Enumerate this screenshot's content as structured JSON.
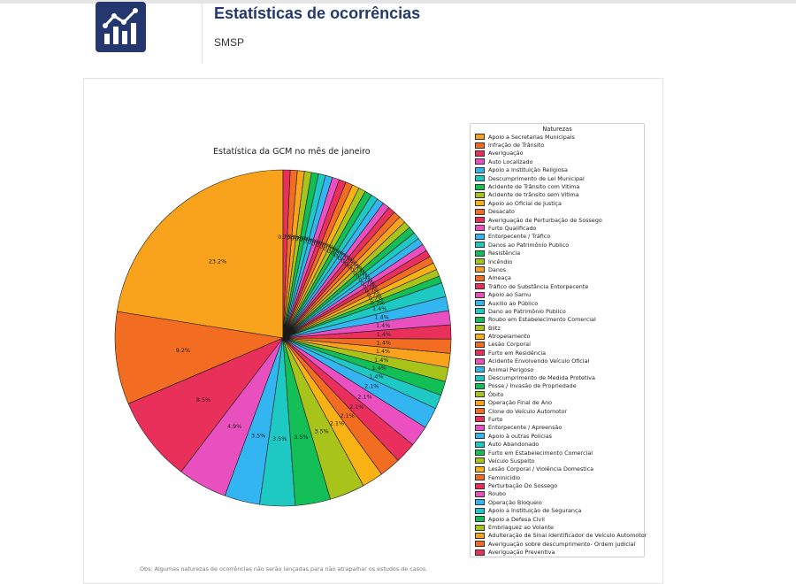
{
  "header": {
    "title": "Estatísticas de ocorrências",
    "subtitle": "SMSP"
  },
  "footer": {
    "note": "Obs: Algumas naturezas de ocorrências não serão lançadas para não atrapalhar os estudos de casos."
  },
  "chart_data": {
    "type": "pie",
    "title": "Estatística da GCM no mês de janeiro",
    "legend_title": "Naturezas",
    "legend_position": "right",
    "start_angle_deg": 90,
    "direction": "counterclockwise",
    "labels": [
      "Apoio a Secretarias Municipais",
      "Infração de Trânsito",
      "Averiguação",
      "Auto Localizado",
      "Apoio a Instituição Religiosa",
      "Descumprimento de Lei Municipal",
      "Acidente de Trânsito com Vitima",
      "Acidente de trânsito sem Vitima",
      "Apoio ao Oficial de Justiça",
      "Desacato",
      "Averiguação de Perturbação de Sossego",
      "Furto Qualificado",
      "Entorpecente / Tráfico",
      "Danos ao Patrimônio Publico",
      "Resistência",
      "Incêndio",
      "Danos",
      "Ameaça",
      "Tráfico de Substância Entorpecente",
      "Apoio ao Samu",
      "Auxilio ao Público",
      "Dano ao Patrimônio Publico",
      "Roubo em Estabelecimento Comercial",
      "Blitz",
      "Atropelamento",
      "Lesão Corporal",
      "Furto em Residência",
      "Acidente Envolvendo Veículo Oficial",
      "Animal Perigoso",
      "Descumprimento de Medida Protetiva",
      "Posse / Invasão de Propriedade",
      "Óbito",
      "Operação Final de Ano",
      "Clone do Veículo Automotor",
      "Furto",
      "Entorpecente / Apreensão",
      "Apoio à outras Policias",
      "Auto Abandonado",
      "Furto em Estabelecimento Comercial",
      "Veículo Suspeito",
      "Lesão Corporal / Violência Domestica",
      "Feminicídio",
      "Perturbação Do Sossego",
      "Roubo",
      "Operação Bloqueio",
      "Apoio a Instituição de Segurança",
      "Apoio a Defesa Civil",
      "Embriaguez ao Volante",
      "Adulteração de Sinal Identificador de Veículo Automotor",
      "Averiguação sobre descumprimento- Ordem judicial",
      "Averiguação Preventiva"
    ],
    "colors": [
      "#f9a21b",
      "#f26c22",
      "#e8305b",
      "#e84fbf",
      "#33b5f2",
      "#1ec9c4",
      "#13bf56",
      "#a8c31a",
      "#f9b214",
      "#f26c22",
      "#ea2f5c",
      "#ec4fc0",
      "#33b5f2",
      "#1ec9c4",
      "#12bf57",
      "#a8c31a"
    ],
    "values": [
      23.2,
      9.2,
      8.5,
      4.9,
      3.5,
      3.5,
      3.5,
      3.5,
      2.1,
      2.1,
      2.1,
      2.1,
      2.1,
      1.4,
      1.4,
      1.4,
      1.4,
      1.4,
      1.4,
      1.4,
      1.4,
      1.4,
      0.7,
      0.7,
      0.7,
      0.7,
      0.7,
      0.7,
      0.7,
      0.7,
      0.7,
      0.7,
      0.7,
      0.7,
      0.7,
      0.7,
      0.7,
      0.7,
      0.7,
      0.7,
      0.7,
      0.7,
      0.7,
      0.7,
      0.7,
      0.7,
      0.7,
      0.7,
      0.7,
      0.7,
      0.7
    ],
    "slice_labels": [
      "23.2%",
      "9.2%",
      "8.5%",
      "4.9%",
      "3.5%",
      "3.5%",
      "3.5%",
      "3.5%",
      "2.1%",
      "2.1%",
      "2.1%",
      "2.1%",
      "2.1%",
      "1.4%",
      "1.4%",
      "1.4%",
      "1.4%",
      "1.4%",
      "1.4%",
      "1.4%",
      "1.4%",
      "1.4%",
      "0.7%",
      "0.7%",
      "0.7%",
      "0.7%",
      "0.7%",
      "0.7%",
      "0.7%",
      "0.7%",
      "0.7%",
      "0.7%",
      "0.7%",
      "0.7%",
      "0.7%",
      "0.7%",
      "0.7%",
      "0.7%",
      "0.7%",
      "0.7%",
      "0.7%",
      "0.7%",
      "0.7%",
      "0.7%",
      "0.7%",
      "0.7%",
      "0.7%",
      "0.7%",
      "0.7%",
      "0.7%",
      "0.7%"
    ]
  }
}
